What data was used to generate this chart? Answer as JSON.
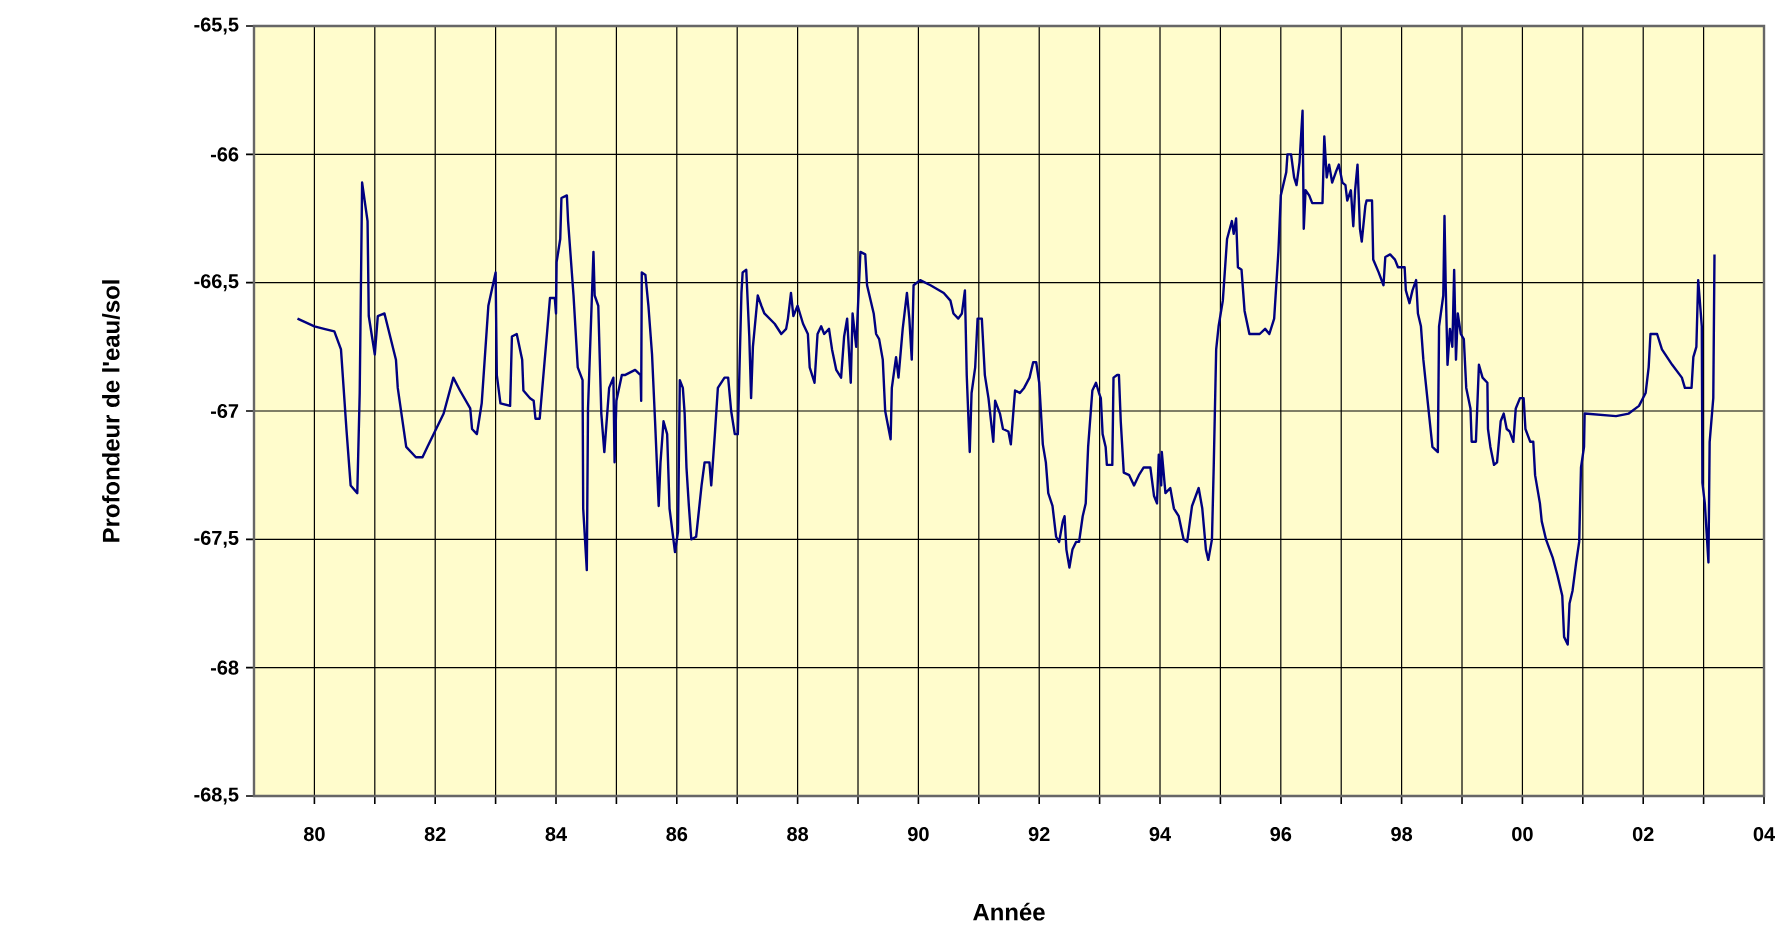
{
  "chart_data": {
    "type": "line",
    "xlabel": "Année",
    "ylabel": "Profondeur de l'eau/sol",
    "xlim": [
      1979,
      2004
    ],
    "ylim": [
      -68.5,
      -65.5
    ],
    "xticks": [
      {
        "value": 1980,
        "label": "80"
      },
      {
        "value": 1981,
        "label": null
      },
      {
        "value": 1982,
        "label": "82"
      },
      {
        "value": 1983,
        "label": null
      },
      {
        "value": 1984,
        "label": "84"
      },
      {
        "value": 1985,
        "label": null
      },
      {
        "value": 1986,
        "label": "86"
      },
      {
        "value": 1987,
        "label": null
      },
      {
        "value": 1988,
        "label": "88"
      },
      {
        "value": 1989,
        "label": null
      },
      {
        "value": 1990,
        "label": "90"
      },
      {
        "value": 1991,
        "label": null
      },
      {
        "value": 1992,
        "label": "92"
      },
      {
        "value": 1993,
        "label": null
      },
      {
        "value": 1994,
        "label": "94"
      },
      {
        "value": 1995,
        "label": null
      },
      {
        "value": 1996,
        "label": "96"
      },
      {
        "value": 1997,
        "label": null
      },
      {
        "value": 1998,
        "label": "98"
      },
      {
        "value": 1999,
        "label": null
      },
      {
        "value": 2000,
        "label": "00"
      },
      {
        "value": 2001,
        "label": null
      },
      {
        "value": 2002,
        "label": "02"
      },
      {
        "value": 2003,
        "label": null
      },
      {
        "value": 2004,
        "label": "04"
      }
    ],
    "yticks": [
      {
        "value": -68.5,
        "label": "-68,5"
      },
      -68,
      {
        "value": -67.5,
        "label": "-67,5"
      },
      -67,
      {
        "value": -66.5,
        "label": "-66,5"
      },
      -66,
      {
        "value": -65.5,
        "label": "-65,5"
      }
    ],
    "grid": true,
    "legend": false,
    "marker": "none",
    "line_style": "solid",
    "series": [
      {
        "color": "#000080",
        "x": [
          1979.72,
          1980.0,
          1980.16,
          1980.33,
          1980.44,
          1980.53,
          1980.6,
          1980.71,
          1980.75,
          1980.79,
          1980.88,
          1980.9,
          1981.0,
          1981.05,
          1981.16,
          1981.35,
          1981.38,
          1981.52,
          1981.68,
          1981.79,
          1981.87,
          1982.14,
          1982.3,
          1982.41,
          1982.58,
          1982.61,
          1982.69,
          1982.77,
          1982.88,
          1983.0,
          1983.02,
          1983.08,
          1983.24,
          1983.27,
          1983.35,
          1983.44,
          1983.46,
          1983.57,
          1983.63,
          1983.66,
          1983.73,
          1983.77,
          1983.85,
          1983.9,
          1983.98,
          1984.0,
          1984.01,
          1984.07,
          1984.09,
          1984.18,
          1984.2,
          1984.29,
          1984.36,
          1984.44,
          1984.45,
          1984.51,
          1984.53,
          1984.62,
          1984.64,
          1984.7,
          1984.75,
          1984.8,
          1984.88,
          1984.95,
          1984.97,
          1985.0,
          1985.09,
          1985.14,
          1985.31,
          1985.4,
          1985.41,
          1985.42,
          1985.48,
          1985.53,
          1985.59,
          1985.64,
          1985.7,
          1985.73,
          1985.78,
          1985.84,
          1985.88,
          1985.97,
          1986.02,
          1986.05,
          1986.1,
          1986.13,
          1986.16,
          1986.2,
          1986.24,
          1986.32,
          1986.41,
          1986.46,
          1986.54,
          1986.57,
          1986.63,
          1986.68,
          1986.79,
          1986.85,
          1986.9,
          1986.96,
          1987.01,
          1987.07,
          1987.09,
          1987.15,
          1987.2,
          1987.23,
          1987.26,
          1987.34,
          1987.4,
          1987.45,
          1987.62,
          1987.73,
          1987.81,
          1987.84,
          1987.89,
          1987.93,
          1988.0,
          1988.09,
          1988.17,
          1988.2,
          1988.28,
          1988.33,
          1988.39,
          1988.44,
          1988.52,
          1988.57,
          1988.64,
          1988.72,
          1988.77,
          1988.82,
          1988.88,
          1988.91,
          1988.97,
          1989.04,
          1989.12,
          1989.15,
          1989.26,
          1989.3,
          1989.35,
          1989.41,
          1989.45,
          1989.54,
          1989.56,
          1989.63,
          1989.67,
          1989.74,
          1989.81,
          1989.85,
          1989.89,
          1989.92,
          1990.03,
          1990.2,
          1990.42,
          1990.53,
          1990.58,
          1990.66,
          1990.72,
          1990.77,
          1990.8,
          1990.85,
          1990.88,
          1990.94,
          1990.98,
          1991.05,
          1991.1,
          1991.16,
          1991.24,
          1991.27,
          1991.35,
          1991.4,
          1991.49,
          1991.53,
          1991.6,
          1991.68,
          1991.75,
          1991.84,
          1991.9,
          1991.95,
          1992.0,
          1992.06,
          1992.11,
          1992.15,
          1992.22,
          1992.28,
          1992.33,
          1992.39,
          1992.42,
          1992.45,
          1992.5,
          1992.55,
          1992.61,
          1992.66,
          1992.72,
          1992.77,
          1992.81,
          1992.88,
          1992.94,
          1992.99,
          1993.02,
          1993.05,
          1993.1,
          1993.12,
          1993.21,
          1993.23,
          1993.29,
          1993.32,
          1993.35,
          1993.4,
          1993.49,
          1993.57,
          1993.65,
          1993.73,
          1993.84,
          1993.9,
          1993.95,
          1993.98,
          1994.02,
          1994.03,
          1994.09,
          1994.17,
          1994.23,
          1994.31,
          1994.39,
          1994.45,
          1994.53,
          1994.64,
          1994.7,
          1994.76,
          1994.8,
          1994.86,
          1994.89,
          1994.93,
          1994.97,
          1995.04,
          1995.11,
          1995.19,
          1995.22,
          1995.26,
          1995.29,
          1995.35,
          1995.4,
          1995.48,
          1995.57,
          1995.65,
          1995.74,
          1995.81,
          1995.89,
          1995.96,
          1996.0,
          1996.09,
          1996.11,
          1996.17,
          1996.22,
          1996.26,
          1996.31,
          1996.36,
          1996.38,
          1996.41,
          1996.47,
          1996.52,
          1996.69,
          1996.72,
          1996.76,
          1996.8,
          1996.85,
          1996.91,
          1996.96,
          1997.02,
          1997.07,
          1997.1,
          1997.16,
          1997.2,
          1997.23,
          1997.27,
          1997.31,
          1997.34,
          1997.4,
          1997.42,
          1997.51,
          1997.53,
          1997.62,
          1997.7,
          1997.73,
          1997.81,
          1997.89,
          1997.94,
          1998.05,
          1998.07,
          1998.13,
          1998.18,
          1998.24,
          1998.27,
          1998.32,
          1998.36,
          1998.43,
          1998.51,
          1998.6,
          1998.62,
          1998.69,
          1998.71,
          1998.73,
          1998.76,
          1998.8,
          1998.84,
          1998.87,
          1998.9,
          1998.93,
          1998.98,
          1999.03,
          1999.07,
          1999.14,
          1999.16,
          1999.23,
          1999.28,
          1999.34,
          1999.42,
          1999.43,
          1999.47,
          1999.53,
          1999.58,
          1999.64,
          1999.69,
          1999.74,
          1999.79,
          1999.85,
          1999.89,
          1999.96,
          2000.02,
          2000.05,
          2000.13,
          2000.18,
          2000.21,
          2000.29,
          2000.32,
          2000.39,
          2000.5,
          2000.58,
          2000.66,
          2000.69,
          2000.75,
          2000.78,
          2000.83,
          2000.89,
          2000.94,
          2000.97,
          2001.02,
          2001.03,
          2001.55,
          2001.76,
          2001.93,
          2002.04,
          2002.09,
          2002.12,
          2002.23,
          2002.31,
          2002.48,
          2002.64,
          2002.69,
          2002.8,
          2002.83,
          2002.88,
          2002.91,
          2002.97,
          2002.98,
          2003.02,
          2003.08,
          2003.1,
          2003.16,
          2003.18
        ],
        "values": [
          -66.64,
          -66.67,
          -66.68,
          -66.69,
          -66.76,
          -67.07,
          -67.29,
          -67.32,
          -66.93,
          -66.11,
          -66.26,
          -66.63,
          -66.78,
          -66.63,
          -66.62,
          -66.8,
          -66.91,
          -67.14,
          -67.18,
          -67.18,
          -67.14,
          -67.01,
          -66.87,
          -66.92,
          -66.99,
          -67.07,
          -67.09,
          -66.97,
          -66.59,
          -66.46,
          -66.86,
          -66.97,
          -66.98,
          -66.71,
          -66.7,
          -66.8,
          -66.92,
          -66.95,
          -66.96,
          -67.03,
          -67.03,
          -66.92,
          -66.7,
          -66.56,
          -66.56,
          -66.62,
          -66.42,
          -66.33,
          -66.17,
          -66.16,
          -66.26,
          -66.55,
          -66.83,
          -66.88,
          -67.38,
          -67.62,
          -66.99,
          -66.38,
          -66.55,
          -66.59,
          -67.01,
          -67.16,
          -66.91,
          -66.87,
          -67.2,
          -66.96,
          -66.86,
          -66.86,
          -66.84,
          -66.86,
          -66.96,
          -66.46,
          -66.47,
          -66.59,
          -66.78,
          -67.04,
          -67.37,
          -67.2,
          -67.04,
          -67.09,
          -67.38,
          -67.55,
          -67.47,
          -66.88,
          -66.91,
          -67.01,
          -67.22,
          -67.37,
          -67.5,
          -67.49,
          -67.29,
          -67.2,
          -67.2,
          -67.29,
          -67.09,
          -66.91,
          -66.87,
          -66.87,
          -67.0,
          -67.09,
          -67.09,
          -66.54,
          -66.46,
          -66.45,
          -66.71,
          -66.95,
          -66.75,
          -66.55,
          -66.59,
          -66.62,
          -66.66,
          -66.7,
          -66.68,
          -66.64,
          -66.54,
          -66.63,
          -66.59,
          -66.66,
          -66.7,
          -66.83,
          -66.89,
          -66.7,
          -66.67,
          -66.7,
          -66.68,
          -66.76,
          -66.84,
          -66.87,
          -66.71,
          -66.64,
          -66.89,
          -66.62,
          -66.75,
          -66.38,
          -66.39,
          -66.51,
          -66.62,
          -66.7,
          -66.72,
          -66.8,
          -67.0,
          -67.11,
          -66.91,
          -66.79,
          -66.87,
          -66.68,
          -66.54,
          -66.64,
          -66.8,
          -66.51,
          -66.49,
          -66.51,
          -66.54,
          -66.57,
          -66.62,
          -66.64,
          -66.62,
          -66.53,
          -66.86,
          -67.16,
          -66.93,
          -66.83,
          -66.64,
          -66.64,
          -66.86,
          -66.95,
          -67.12,
          -66.96,
          -67.01,
          -67.07,
          -67.08,
          -67.13,
          -66.92,
          -66.93,
          -66.91,
          -66.87,
          -66.81,
          -66.81,
          -66.89,
          -67.13,
          -67.2,
          -67.32,
          -67.37,
          -67.49,
          -67.51,
          -67.43,
          -67.41,
          -67.54,
          -67.61,
          -67.54,
          -67.51,
          -67.51,
          -67.41,
          -67.36,
          -67.14,
          -66.92,
          -66.89,
          -66.93,
          -66.95,
          -67.09,
          -67.14,
          -67.21,
          -67.21,
          -66.87,
          -66.86,
          -66.86,
          -67.04,
          -67.24,
          -67.25,
          -67.29,
          -67.25,
          -67.22,
          -67.22,
          -67.33,
          -67.36,
          -67.17,
          -67.29,
          -67.16,
          -67.32,
          -67.3,
          -67.38,
          -67.41,
          -67.5,
          -67.51,
          -67.37,
          -67.3,
          -67.38,
          -67.54,
          -67.58,
          -67.5,
          -67.21,
          -66.76,
          -66.67,
          -66.57,
          -66.33,
          -66.26,
          -66.31,
          -66.25,
          -66.44,
          -66.45,
          -66.61,
          -66.7,
          -66.7,
          -66.7,
          -66.68,
          -66.7,
          -66.64,
          -66.38,
          -66.16,
          -66.07,
          -66.0,
          -66.0,
          -66.09,
          -66.12,
          -66.03,
          -65.83,
          -66.29,
          -66.14,
          -66.16,
          -66.19,
          -66.19,
          -65.93,
          -66.09,
          -66.04,
          -66.11,
          -66.07,
          -66.04,
          -66.11,
          -66.12,
          -66.18,
          -66.14,
          -66.28,
          -66.14,
          -66.04,
          -66.29,
          -66.34,
          -66.2,
          -66.18,
          -66.18,
          -66.41,
          -66.46,
          -66.51,
          -66.4,
          -66.39,
          -66.41,
          -66.44,
          -66.44,
          -66.53,
          -66.58,
          -66.53,
          -66.49,
          -66.62,
          -66.67,
          -66.8,
          -66.96,
          -67.14,
          -67.16,
          -66.67,
          -66.55,
          -66.24,
          -66.51,
          -66.82,
          -66.68,
          -66.75,
          -66.45,
          -66.8,
          -66.62,
          -66.7,
          -66.72,
          -66.91,
          -66.99,
          -67.12,
          -67.12,
          -66.82,
          -66.87,
          -66.89,
          -67.07,
          -67.14,
          -67.21,
          -67.2,
          -67.04,
          -67.01,
          -67.07,
          -67.08,
          -67.12,
          -66.99,
          -66.95,
          -66.95,
          -67.07,
          -67.12,
          -67.12,
          -67.25,
          -67.36,
          -67.43,
          -67.5,
          -67.57,
          -67.64,
          -67.72,
          -67.88,
          -67.91,
          -67.75,
          -67.7,
          -67.59,
          -67.51,
          -67.22,
          -67.14,
          -67.01,
          -67.02,
          -67.01,
          -66.98,
          -66.93,
          -66.83,
          -66.7,
          -66.7,
          -66.76,
          -66.82,
          -66.87,
          -66.91,
          -66.91,
          -66.79,
          -66.75,
          -66.49,
          -66.67,
          -67.28,
          -67.36,
          -67.59,
          -67.12,
          -66.95,
          -66.39
        ]
      }
    ]
  }
}
